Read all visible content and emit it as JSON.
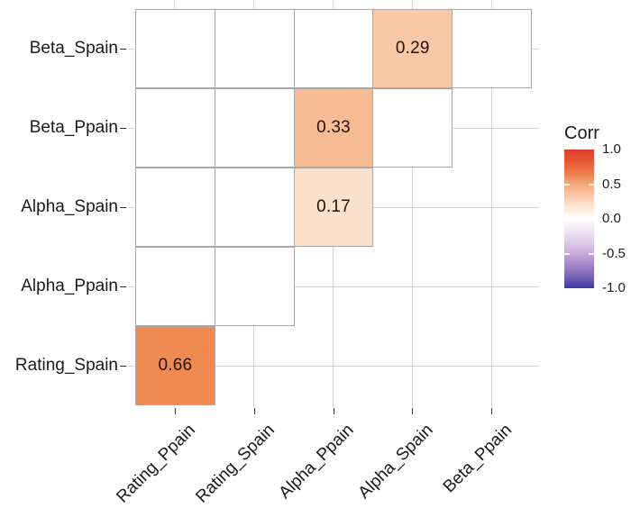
{
  "chart_data": {
    "type": "heatmap",
    "subtype": "correlation-matrix-upper-triangle",
    "title": "",
    "x_categories": [
      "Rating_Ppain",
      "Rating_Spain",
      "Alpha_Ppain",
      "Alpha_Spain",
      "Beta_Ppain"
    ],
    "y_categories": [
      "Beta_Spain",
      "Beta_Ppain",
      "Alpha_Spain",
      "Alpha_Ppain",
      "Rating_Spain"
    ],
    "cells": [
      {
        "y": "Beta_Spain",
        "x": "Rating_Ppain",
        "value": null,
        "label": "",
        "fill": "#ffffff"
      },
      {
        "y": "Beta_Spain",
        "x": "Rating_Spain",
        "value": null,
        "label": "",
        "fill": "#ffffff"
      },
      {
        "y": "Beta_Spain",
        "x": "Alpha_Ppain",
        "value": null,
        "label": "",
        "fill": "#ffffff"
      },
      {
        "y": "Beta_Spain",
        "x": "Alpha_Spain",
        "value": 0.29,
        "label": "0.29",
        "fill": "#f9c8a6"
      },
      {
        "y": "Beta_Spain",
        "x": "Beta_Ppain",
        "value": null,
        "label": "",
        "fill": "#ffffff"
      },
      {
        "y": "Beta_Ppain",
        "x": "Rating_Ppain",
        "value": null,
        "label": "",
        "fill": "#ffffff"
      },
      {
        "y": "Beta_Ppain",
        "x": "Rating_Spain",
        "value": null,
        "label": "",
        "fill": "#ffffff"
      },
      {
        "y": "Beta_Ppain",
        "x": "Alpha_Ppain",
        "value": 0.33,
        "label": "0.33",
        "fill": "#f7bc93"
      },
      {
        "y": "Beta_Ppain",
        "x": "Alpha_Spain",
        "value": null,
        "label": "",
        "fill": "#ffffff"
      },
      {
        "y": "Alpha_Spain",
        "x": "Rating_Ppain",
        "value": null,
        "label": "",
        "fill": "#ffffff"
      },
      {
        "y": "Alpha_Spain",
        "x": "Rating_Spain",
        "value": null,
        "label": "",
        "fill": "#ffffff"
      },
      {
        "y": "Alpha_Spain",
        "x": "Alpha_Ppain",
        "value": 0.17,
        "label": "0.17",
        "fill": "#fce1cc"
      },
      {
        "y": "Alpha_Ppain",
        "x": "Rating_Ppain",
        "value": null,
        "label": "",
        "fill": "#ffffff"
      },
      {
        "y": "Alpha_Ppain",
        "x": "Rating_Spain",
        "value": null,
        "label": "",
        "fill": "#ffffff"
      },
      {
        "y": "Rating_Spain",
        "x": "Rating_Ppain",
        "value": 0.66,
        "label": "0.66",
        "fill": "#ef8a51"
      }
    ],
    "legend": {
      "title": "Corr",
      "position": "right",
      "range": [
        -1.0,
        1.0
      ],
      "tick_labels": [
        "1.0",
        "0.5",
        "0.0",
        "-0.5",
        "-1.0"
      ],
      "tick_values": [
        1.0,
        0.5,
        0.0,
        -0.5,
        -1.0
      ],
      "gradient_stops": [
        {
          "pos": 0,
          "color": "#d93e25"
        },
        {
          "pos": 8,
          "color": "#e65633"
        },
        {
          "pos": 17,
          "color": "#ef7b4c"
        },
        {
          "pos": 25,
          "color": "#f5a87c"
        },
        {
          "pos": 33,
          "color": "#f9c8a6"
        },
        {
          "pos": 42,
          "color": "#fde8d8"
        },
        {
          "pos": 50,
          "color": "#ffffff"
        },
        {
          "pos": 58,
          "color": "#f0e7f3"
        },
        {
          "pos": 67,
          "color": "#ddcce7"
        },
        {
          "pos": 75,
          "color": "#c5a9d7"
        },
        {
          "pos": 83,
          "color": "#a487c5"
        },
        {
          "pos": 91,
          "color": "#7e66b4"
        },
        {
          "pos": 97,
          "color": "#5248a7"
        },
        {
          "pos": 100,
          "color": "#3939a3"
        }
      ]
    },
    "style_colors": {
      "panel_gridline": "#d2d2d2",
      "tile_border": "#a8a8a8",
      "axis_tick": "#333333",
      "text": "#1a1a1a"
    },
    "grid": true,
    "x_tick_angle": 45
  }
}
